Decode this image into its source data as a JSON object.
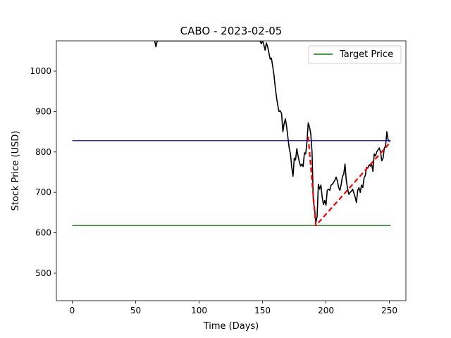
{
  "chart_data": {
    "type": "line",
    "title": "CABO - 2023-02-05",
    "xlabel": "Time (Days)",
    "ylabel": "Stock Price (USD)",
    "xlim": [
      -12.5,
      263
    ],
    "ylim": [
      432,
      1075
    ],
    "xticks": [
      0,
      50,
      100,
      150,
      200,
      250
    ],
    "yticks": [
      500,
      600,
      700,
      800,
      900,
      1000
    ],
    "grid": false,
    "legend": {
      "position": "top-right",
      "entries": [
        {
          "label": "Target Price",
          "color": "#008000"
        }
      ]
    },
    "series": [
      {
        "type": "line",
        "color": "#000000",
        "points": [
          [
            65,
            1075
          ],
          [
            66,
            1060
          ],
          [
            67,
            1075
          ],
          [
            148,
            1075
          ],
          [
            149,
            1068
          ],
          [
            150,
            1075
          ],
          [
            151,
            1065
          ],
          [
            152,
            1052
          ],
          [
            153,
            1070
          ],
          [
            154,
            1060
          ],
          [
            155,
            1045
          ],
          [
            156,
            1030
          ],
          [
            157,
            1032
          ],
          [
            158,
            1012
          ],
          [
            159,
            990
          ],
          [
            160,
            960
          ],
          [
            161,
            935
          ],
          [
            162,
            915
          ],
          [
            163,
            900
          ],
          [
            164,
            902
          ],
          [
            165,
            895
          ],
          [
            166,
            850
          ],
          [
            167,
            870
          ],
          [
            168,
            882
          ],
          [
            169,
            862
          ],
          [
            170,
            835
          ],
          [
            171,
            810
          ],
          [
            172,
            795
          ],
          [
            173,
            762
          ],
          [
            174,
            740
          ],
          [
            175,
            785
          ],
          [
            176,
            780
          ],
          [
            177,
            808
          ],
          [
            178,
            790
          ],
          [
            179,
            775
          ],
          [
            180,
            765
          ],
          [
            181,
            770
          ],
          [
            182,
            764
          ],
          [
            183,
            798
          ],
          [
            184,
            795
          ],
          [
            185,
            825
          ],
          [
            186,
            872
          ],
          [
            187,
            862
          ],
          [
            188,
            845
          ],
          [
            189,
            800
          ],
          [
            190,
            680
          ],
          [
            191,
            660
          ],
          [
            192,
            625
          ],
          [
            193,
            640
          ],
          [
            194,
            720
          ],
          [
            195,
            708
          ],
          [
            196,
            718
          ],
          [
            197,
            688
          ],
          [
            198,
            670
          ],
          [
            199,
            680
          ],
          [
            200,
            668
          ],
          [
            201,
            705
          ],
          [
            202,
            708
          ],
          [
            203,
            705
          ],
          [
            204,
            718
          ],
          [
            205,
            720
          ],
          [
            206,
            725
          ],
          [
            207,
            730
          ],
          [
            208,
            738
          ],
          [
            209,
            728
          ],
          [
            210,
            712
          ],
          [
            211,
            705
          ],
          [
            212,
            720
          ],
          [
            213,
            740
          ],
          [
            214,
            745
          ],
          [
            215,
            770
          ],
          [
            216,
            730
          ],
          [
            217,
            710
          ],
          [
            218,
            695
          ],
          [
            219,
            700
          ],
          [
            220,
            703
          ],
          [
            221,
            708
          ],
          [
            222,
            698
          ],
          [
            223,
            688
          ],
          [
            224,
            675
          ],
          [
            225,
            705
          ],
          [
            226,
            712
          ],
          [
            227,
            700
          ],
          [
            228,
            718
          ],
          [
            229,
            712
          ],
          [
            230,
            735
          ],
          [
            231,
            742
          ],
          [
            232,
            762
          ],
          [
            233,
            760
          ],
          [
            234,
            768
          ],
          [
            235,
            765
          ],
          [
            236,
            770
          ],
          [
            237,
            752
          ],
          [
            238,
            795
          ],
          [
            239,
            790
          ],
          [
            240,
            800
          ],
          [
            241,
            805
          ],
          [
            242,
            810
          ],
          [
            243,
            800
          ],
          [
            244,
            778
          ],
          [
            245,
            785
          ],
          [
            246,
            810
          ],
          [
            247,
            815
          ],
          [
            248,
            850
          ],
          [
            249,
            830
          ],
          [
            250,
            825
          ]
        ]
      },
      {
        "type": "hline",
        "color": "#0000ff",
        "y": 828,
        "x": [
          0,
          251
        ]
      },
      {
        "type": "hline",
        "name": "Target Price",
        "color": "#008000",
        "y": 618,
        "x": [
          0,
          251
        ]
      },
      {
        "type": "dashed",
        "color": "#ff0000",
        "points": [
          [
            186,
            838
          ],
          [
            192,
            618
          ],
          [
            251,
            825
          ]
        ]
      }
    ]
  }
}
